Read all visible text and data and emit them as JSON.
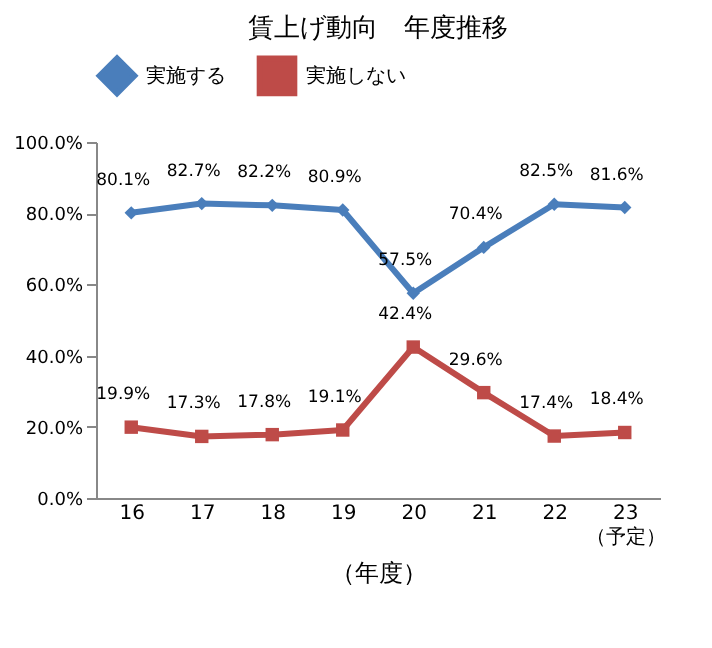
{
  "chart_data": {
    "type": "line",
    "title": "賃上げ動向　年度推移",
    "xlabel": "（年度）",
    "categories": [
      "16",
      "17",
      "18",
      "19",
      "20",
      "21",
      "22",
      "23\n（予定）"
    ],
    "series": [
      {
        "name": "実施する",
        "color": "#4a7ebb",
        "marker": "diamond",
        "values": [
          80.1,
          82.7,
          82.2,
          80.9,
          57.5,
          70.4,
          82.5,
          81.6
        ],
        "value_labels": [
          "80.1%",
          "82.7%",
          "82.2%",
          "80.9%",
          "57.5%",
          "70.4%",
          "82.5%",
          "81.6%"
        ]
      },
      {
        "name": "実施しない",
        "color": "#be4b48",
        "marker": "square",
        "values": [
          19.9,
          17.3,
          17.8,
          19.1,
          42.4,
          29.6,
          17.4,
          18.4
        ],
        "value_labels": [
          "19.9%",
          "17.3%",
          "17.8%",
          "19.1%",
          "42.4%",
          "29.6%",
          "17.4%",
          "18.4%"
        ]
      }
    ],
    "ylim": [
      0,
      100
    ],
    "yticks": [
      {
        "value": 0,
        "label": "0.0%"
      },
      {
        "value": 20,
        "label": "20.0%"
      },
      {
        "value": 40,
        "label": "40.0%"
      },
      {
        "value": 60,
        "label": "60.0%"
      },
      {
        "value": 80,
        "label": "80.0%"
      },
      {
        "value": 100,
        "label": "100.0%"
      }
    ],
    "grid": false,
    "legend": "top",
    "line_style": "solid"
  }
}
